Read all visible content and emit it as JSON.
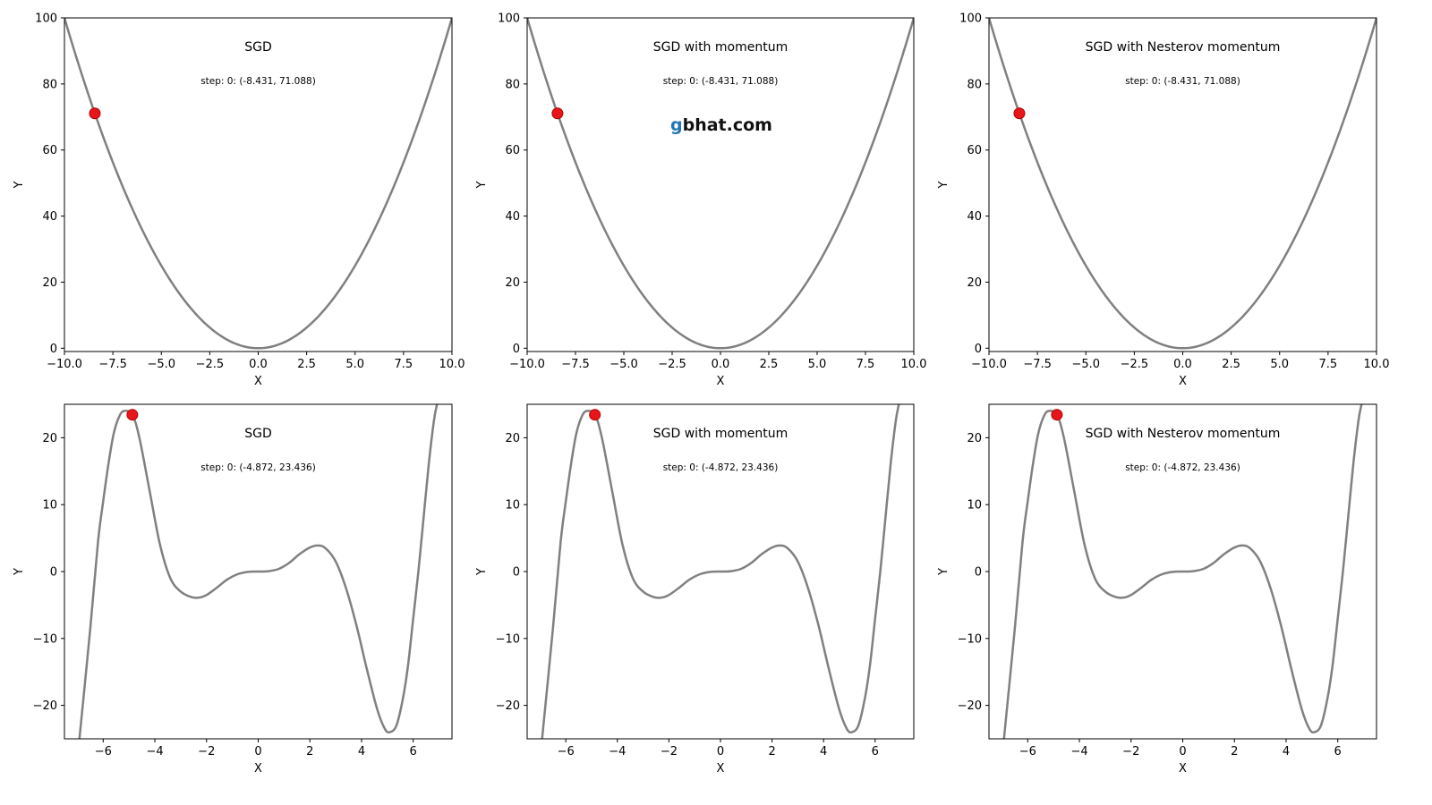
{
  "watermark": {
    "prefix": "g",
    "rest": "bhat.com",
    "prefix_color": "#1f77b4",
    "rest_color": "#111111"
  },
  "style": {
    "curve_color": "#808080",
    "marker_color": "#e8161b",
    "marker_edge_color": "#b00000"
  },
  "chart_data": [
    {
      "type": "line",
      "function": "x^2",
      "title": "SGD",
      "annotation": "step: 0: (-8.431, 71.088)",
      "xlabel": "X",
      "ylabel": "Y",
      "xlim": [
        -10,
        10
      ],
      "ylim": [
        -1,
        100
      ],
      "xticks": [
        -10,
        -7.5,
        -5,
        -2.5,
        0,
        2.5,
        5,
        7.5,
        10
      ],
      "xtick_labels": [
        "−10.0",
        "−7.5",
        "−5.0",
        "−2.5",
        "0.0",
        "2.5",
        "5.0",
        "7.5",
        "10.0"
      ],
      "yticks": [
        0,
        20,
        40,
        60,
        80,
        100
      ],
      "ytick_labels": [
        "0",
        "20",
        "40",
        "60",
        "80",
        "100"
      ],
      "point": {
        "x": -8.431,
        "y": 71.088
      }
    },
    {
      "type": "line",
      "function": "x^2",
      "title": "SGD with momentum",
      "annotation": "step: 0: (-8.431, 71.088)",
      "xlabel": "X",
      "ylabel": "Y",
      "xlim": [
        -10,
        10
      ],
      "ylim": [
        -1,
        100
      ],
      "xticks": [
        -10,
        -7.5,
        -5,
        -2.5,
        0,
        2.5,
        5,
        7.5,
        10
      ],
      "xtick_labels": [
        "−10.0",
        "−7.5",
        "−5.0",
        "−2.5",
        "0.0",
        "2.5",
        "5.0",
        "7.5",
        "10.0"
      ],
      "yticks": [
        0,
        20,
        40,
        60,
        80,
        100
      ],
      "ytick_labels": [
        "0",
        "20",
        "40",
        "60",
        "80",
        "100"
      ],
      "point": {
        "x": -8.431,
        "y": 71.088
      }
    },
    {
      "type": "line",
      "function": "x^2",
      "title": "SGD with Nesterov momentum",
      "annotation": "step: 0: (-8.431, 71.088)",
      "xlabel": "X",
      "ylabel": "Y",
      "xlim": [
        -10,
        10
      ],
      "ylim": [
        -1,
        100
      ],
      "xticks": [
        -10,
        -7.5,
        -5,
        -2.5,
        0,
        2.5,
        5,
        7.5,
        10
      ],
      "xtick_labels": [
        "−10.0",
        "−7.5",
        "−5.0",
        "−2.5",
        "0.0",
        "2.5",
        "5.0",
        "7.5",
        "10.0"
      ],
      "yticks": [
        0,
        20,
        40,
        60,
        80,
        100
      ],
      "ytick_labels": [
        "0",
        "20",
        "40",
        "60",
        "80",
        "100"
      ],
      "point": {
        "x": -8.431,
        "y": 71.088
      }
    },
    {
      "type": "line",
      "function": "x^6/6 - 4.5x^4 + 2x^3 + 25x^2/3 - 5x + 5 (approx. shape)",
      "title": "SGD",
      "annotation": "step: 0: (-4.872, 23.436)",
      "xlabel": "X",
      "ylabel": "Y",
      "xlim": [
        -7.5,
        7.5
      ],
      "ylim": [
        -25,
        25
      ],
      "xticks": [
        -6,
        -4,
        -2,
        0,
        2,
        4,
        6
      ],
      "xtick_labels": [
        "−6",
        "−4",
        "−2",
        "0",
        "2",
        "4",
        "6"
      ],
      "yticks": [
        -20,
        -10,
        0,
        10,
        20
      ],
      "ytick_labels": [
        "−20",
        "−10",
        "0",
        "10",
        "20"
      ],
      "curve_points": [
        [
          -6.92,
          -25
        ],
        [
          -6.5,
          -8.5
        ],
        [
          -6.2,
          4.5
        ],
        [
          -6.0,
          10.5
        ],
        [
          -5.8,
          16
        ],
        [
          -5.6,
          20.5
        ],
        [
          -5.4,
          23
        ],
        [
          -5.2,
          24
        ],
        [
          -4.872,
          23.436
        ],
        [
          -4.6,
          20
        ],
        [
          -4.2,
          12
        ],
        [
          -3.8,
          4
        ],
        [
          -3.4,
          -1
        ],
        [
          -3.0,
          -3
        ],
        [
          -2.6,
          -3.8
        ],
        [
          -2.3,
          -3.9
        ],
        [
          -2.0,
          -3.5
        ],
        [
          -1.6,
          -2.4
        ],
        [
          -1.2,
          -1.2
        ],
        [
          -0.8,
          -0.4
        ],
        [
          -0.4,
          -0.05
        ],
        [
          0,
          0
        ],
        [
          0.4,
          0.05
        ],
        [
          0.8,
          0.4
        ],
        [
          1.2,
          1.3
        ],
        [
          1.6,
          2.6
        ],
        [
          2.0,
          3.6
        ],
        [
          2.3,
          3.9
        ],
        [
          2.6,
          3.5
        ],
        [
          3.0,
          1.5
        ],
        [
          3.4,
          -2.5
        ],
        [
          3.8,
          -8
        ],
        [
          4.2,
          -14.5
        ],
        [
          4.6,
          -20.5
        ],
        [
          4.9,
          -23.5
        ],
        [
          5.1,
          -24
        ],
        [
          5.35,
          -23
        ],
        [
          5.6,
          -19
        ],
        [
          5.8,
          -14
        ],
        [
          6.0,
          -7
        ],
        [
          6.2,
          0
        ],
        [
          6.4,
          8
        ],
        [
          6.6,
          16
        ],
        [
          6.8,
          22.5
        ],
        [
          6.92,
          25
        ]
      ],
      "point": {
        "x": -4.872,
        "y": 23.436
      }
    },
    {
      "type": "line",
      "function": "same as panel 4",
      "title": "SGD with momentum",
      "annotation": "step: 0: (-4.872, 23.436)",
      "xlabel": "X",
      "ylabel": "Y",
      "xlim": [
        -7.5,
        7.5
      ],
      "ylim": [
        -25,
        25
      ],
      "xticks": [
        -6,
        -4,
        -2,
        0,
        2,
        4,
        6
      ],
      "xtick_labels": [
        "−6",
        "−4",
        "−2",
        "0",
        "2",
        "4",
        "6"
      ],
      "yticks": [
        -20,
        -10,
        0,
        10,
        20
      ],
      "ytick_labels": [
        "−20",
        "−10",
        "0",
        "10",
        "20"
      ],
      "curve_points": [
        [
          -6.92,
          -25
        ],
        [
          -6.5,
          -8.5
        ],
        [
          -6.2,
          4.5
        ],
        [
          -6.0,
          10.5
        ],
        [
          -5.8,
          16
        ],
        [
          -5.6,
          20.5
        ],
        [
          -5.4,
          23
        ],
        [
          -5.2,
          24
        ],
        [
          -4.872,
          23.436
        ],
        [
          -4.6,
          20
        ],
        [
          -4.2,
          12
        ],
        [
          -3.8,
          4
        ],
        [
          -3.4,
          -1
        ],
        [
          -3.0,
          -3
        ],
        [
          -2.6,
          -3.8
        ],
        [
          -2.3,
          -3.9
        ],
        [
          -2.0,
          -3.5
        ],
        [
          -1.6,
          -2.4
        ],
        [
          -1.2,
          -1.2
        ],
        [
          -0.8,
          -0.4
        ],
        [
          -0.4,
          -0.05
        ],
        [
          0,
          0
        ],
        [
          0.4,
          0.05
        ],
        [
          0.8,
          0.4
        ],
        [
          1.2,
          1.3
        ],
        [
          1.6,
          2.6
        ],
        [
          2.0,
          3.6
        ],
        [
          2.3,
          3.9
        ],
        [
          2.6,
          3.5
        ],
        [
          3.0,
          1.5
        ],
        [
          3.4,
          -2.5
        ],
        [
          3.8,
          -8
        ],
        [
          4.2,
          -14.5
        ],
        [
          4.6,
          -20.5
        ],
        [
          4.9,
          -23.5
        ],
        [
          5.1,
          -24
        ],
        [
          5.35,
          -23
        ],
        [
          5.6,
          -19
        ],
        [
          5.8,
          -14
        ],
        [
          6.0,
          -7
        ],
        [
          6.2,
          0
        ],
        [
          6.4,
          8
        ],
        [
          6.6,
          16
        ],
        [
          6.8,
          22.5
        ],
        [
          6.92,
          25
        ]
      ],
      "point": {
        "x": -4.872,
        "y": 23.436
      }
    },
    {
      "type": "line",
      "function": "same as panel 4",
      "title": "SGD with Nesterov momentum",
      "annotation": "step: 0: (-4.872, 23.436)",
      "xlabel": "X",
      "ylabel": "Y",
      "xlim": [
        -7.5,
        7.5
      ],
      "ylim": [
        -25,
        25
      ],
      "xticks": [
        -6,
        -4,
        -2,
        0,
        2,
        4,
        6
      ],
      "xtick_labels": [
        "−6",
        "−4",
        "−2",
        "0",
        "2",
        "4",
        "6"
      ],
      "yticks": [
        -20,
        -10,
        0,
        10,
        20
      ],
      "ytick_labels": [
        "−20",
        "−10",
        "0",
        "10",
        "20"
      ],
      "curve_points": [
        [
          -6.92,
          -25
        ],
        [
          -6.5,
          -8.5
        ],
        [
          -6.2,
          4.5
        ],
        [
          -6.0,
          10.5
        ],
        [
          -5.8,
          16
        ],
        [
          -5.6,
          20.5
        ],
        [
          -5.4,
          23
        ],
        [
          -5.2,
          24
        ],
        [
          -4.872,
          23.436
        ],
        [
          -4.6,
          20
        ],
        [
          -4.2,
          12
        ],
        [
          -3.8,
          4
        ],
        [
          -3.4,
          -1
        ],
        [
          -3.0,
          -3
        ],
        [
          -2.6,
          -3.8
        ],
        [
          -2.3,
          -3.9
        ],
        [
          -2.0,
          -3.5
        ],
        [
          -1.6,
          -2.4
        ],
        [
          -1.2,
          -1.2
        ],
        [
          -0.8,
          -0.4
        ],
        [
          -0.4,
          -0.05
        ],
        [
          0,
          0
        ],
        [
          0.4,
          0.05
        ],
        [
          0.8,
          0.4
        ],
        [
          1.2,
          1.3
        ],
        [
          1.6,
          2.6
        ],
        [
          2.0,
          3.6
        ],
        [
          2.3,
          3.9
        ],
        [
          2.6,
          3.5
        ],
        [
          3.0,
          1.5
        ],
        [
          3.4,
          -2.5
        ],
        [
          3.8,
          -8
        ],
        [
          4.2,
          -14.5
        ],
        [
          4.6,
          -20.5
        ],
        [
          4.9,
          -23.5
        ],
        [
          5.1,
          -24
        ],
        [
          5.35,
          -23
        ],
        [
          5.6,
          -19
        ],
        [
          5.8,
          -14
        ],
        [
          6.0,
          -7
        ],
        [
          6.2,
          0
        ],
        [
          6.4,
          8
        ],
        [
          6.6,
          16
        ],
        [
          6.8,
          22.5
        ],
        [
          6.92,
          25
        ]
      ],
      "point": {
        "x": -4.872,
        "y": 23.436
      }
    }
  ]
}
